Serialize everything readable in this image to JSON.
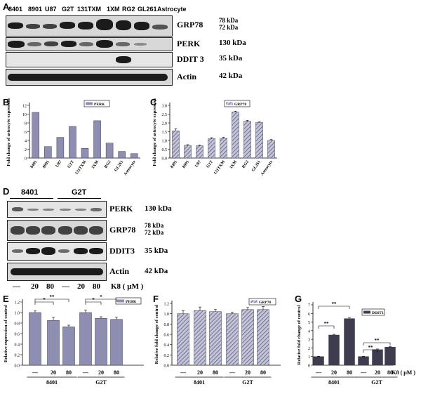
{
  "panels": {
    "a": "A",
    "b": "B",
    "c": "C",
    "d": "D",
    "e": "E",
    "f": "F",
    "g": "G"
  },
  "blotA": {
    "lanes": [
      "8401",
      "8901",
      "U87",
      "G2T",
      "131TXM",
      "1XM",
      "RG2",
      "GL261",
      "Astrocyte"
    ],
    "rows": [
      {
        "name": "GRP78",
        "kda": [
          "78 kDa",
          "72 kDa"
        ]
      },
      {
        "name": "PERK",
        "kda": [
          "130 kDa"
        ]
      },
      {
        "name": "DDIT 3",
        "kda": [
          "35 kDa"
        ]
      },
      {
        "name": "Actin",
        "kda": [
          "42 kDa"
        ]
      }
    ]
  },
  "blotD": {
    "groups": [
      "8401",
      "G2T"
    ],
    "rows": [
      {
        "name": "PERK",
        "kda": [
          "130 kDa"
        ]
      },
      {
        "name": "GRP78",
        "kda": [
          "78 kDa",
          "72 kDa"
        ]
      },
      {
        "name": "DDIT3",
        "kda": [
          "35 kDa"
        ]
      },
      {
        "name": "Actin",
        "kda": [
          "42 kDa"
        ]
      }
    ],
    "doses": [
      "—",
      "20",
      "80",
      "—",
      "20",
      "80"
    ],
    "treatment": "K8 ( μM )"
  },
  "chart_data": [
    {
      "id": "B",
      "type": "bar",
      "categories": [
        "8401",
        "8901",
        "U87",
        "G2T",
        "131TXM",
        "1XM",
        "RG2",
        "GL261",
        "Astrocyte"
      ],
      "series": [
        {
          "name": "PERK",
          "values": [
            10.4,
            2.6,
            4.7,
            7.2,
            2.2,
            8.5,
            3.4,
            1.5,
            1.0
          ]
        }
      ],
      "ylabel": "Fold change of astrocyte expression",
      "ylim": [
        0,
        12
      ],
      "yticks": [
        0,
        2,
        4,
        6,
        8,
        10,
        12
      ],
      "legend": "top-right",
      "color": "#8e8eb3"
    },
    {
      "id": "C",
      "type": "bar",
      "categories": [
        "8401",
        "8901",
        "U87",
        "G2T",
        "131TXM",
        "1XM",
        "RG2",
        "GL261",
        "Astrocyte"
      ],
      "series": [
        {
          "name": "GRP78",
          "values": [
            1.55,
            0.72,
            0.7,
            1.1,
            1.12,
            2.62,
            2.1,
            2.02,
            1.0
          ],
          "errors": [
            0.12,
            0.04,
            0.04,
            0.06,
            0.07,
            0.05,
            0.05,
            0.04,
            0.05
          ]
        }
      ],
      "ylabel": "Fold change of astrocyte expression",
      "ylim": [
        0,
        3.0
      ],
      "yticks": [
        0.0,
        0.5,
        1.0,
        1.5,
        2.0,
        2.5,
        3.0
      ],
      "legend": "top-right",
      "hatched": true
    },
    {
      "id": "E",
      "type": "bar",
      "group_labels": [
        "8401",
        "G2T"
      ],
      "dose_labels": [
        "—",
        "20",
        "80",
        "—",
        "20",
        "80"
      ],
      "series": [
        {
          "name": "PERK",
          "values": [
            1.0,
            0.85,
            0.73,
            1.0,
            0.89,
            0.87
          ],
          "errors": [
            0.03,
            0.06,
            0.03,
            0.05,
            0.03,
            0.04
          ]
        }
      ],
      "ylabel": "Relative expression of control",
      "ylim": [
        0,
        1.2
      ],
      "yticks": [
        0.0,
        0.2,
        0.4,
        0.6,
        0.8,
        1.0,
        1.2
      ],
      "significance": [
        "*",
        "**",
        "*",
        "*"
      ],
      "legend": "top-right"
    },
    {
      "id": "F",
      "type": "bar",
      "group_labels": [
        "8401",
        "G2T"
      ],
      "dose_labels": [
        "—",
        "20",
        "80",
        "—",
        "20",
        "80"
      ],
      "series": [
        {
          "name": "GRP78",
          "values": [
            1.0,
            1.06,
            1.04,
            1.0,
            1.08,
            1.08
          ],
          "errors": [
            0.06,
            0.07,
            0.04,
            0.03,
            0.04,
            0.06
          ]
        }
      ],
      "ylabel": "Relative fold change of control",
      "ylim": [
        0,
        1.2
      ],
      "yticks": [
        0.0,
        0.2,
        0.4,
        0.6,
        0.8,
        1.0,
        1.2
      ],
      "legend": "top-right",
      "hatched": true
    },
    {
      "id": "G",
      "type": "bar",
      "group_labels": [
        "8401",
        "G2T"
      ],
      "dose_labels": [
        "—",
        "20",
        "80",
        "—",
        "20",
        "80"
      ],
      "series": [
        {
          "name": "DDIT3",
          "values": [
            1.0,
            3.5,
            5.4,
            1.0,
            1.8,
            2.1
          ],
          "errors": [
            0.03,
            0.08,
            0.08,
            0.04,
            0.08,
            0.06
          ]
        }
      ],
      "ylabel": "Relative fold change of control",
      "ylim": [
        0,
        7
      ],
      "yticks": [
        0,
        1,
        2,
        3,
        4,
        5,
        6,
        7
      ],
      "significance": [
        "**",
        "**",
        "**",
        "**"
      ],
      "treatment": "K8 ( μM )",
      "legend": "top-right",
      "color": "#3d3d4f"
    }
  ]
}
